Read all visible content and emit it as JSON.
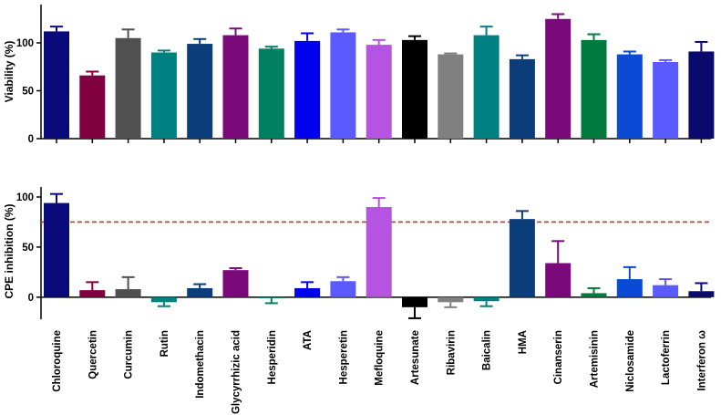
{
  "chart_data": {
    "categories": [
      "Chloroquine",
      "Quercetin",
      "Curcumin",
      "Rutin",
      "Indomethacin",
      "Glycyrrhizic acid",
      "Hesperidin",
      "ATA",
      "Hesperetin",
      "Mefloquine",
      "Artesunate",
      "Ribavirin",
      "Baicalin",
      "HMA",
      "Cinanserin",
      "Artemisinin",
      "Niclosamide",
      "Lactoferrin",
      "Interferon ω"
    ],
    "colors": [
      "#0a0a7a",
      "#800040",
      "#505050",
      "#008080",
      "#0a3d7a",
      "#7a0a7a",
      "#008060",
      "#0000ee",
      "#5a5aff",
      "#b454e0",
      "#000000",
      "#808080",
      "#008080",
      "#0a3d7a",
      "#7a0a7a",
      "#007a3d",
      "#0a4ad4",
      "#5a5aff",
      "#0a0a6e"
    ],
    "panels": [
      {
        "type": "bar",
        "ylabel": "Viability (%)",
        "ylim": [
          0,
          140
        ],
        "yticks": [
          0,
          50,
          100
        ],
        "values": [
          112,
          66,
          105,
          90,
          99,
          108,
          94,
          102,
          111,
          98,
          103,
          88,
          108,
          83,
          125,
          103,
          88,
          80,
          91
        ],
        "errors": [
          5,
          4,
          9,
          2,
          5,
          7,
          2,
          8,
          3,
          5,
          4,
          1,
          9,
          4,
          5,
          6,
          3,
          2,
          10
        ]
      },
      {
        "type": "bar",
        "ylabel": "CPE inhibition (%)",
        "ylim": [
          -22,
          110
        ],
        "yticks": [
          0,
          50,
          100
        ],
        "values": [
          94,
          7,
          8,
          -5,
          9,
          27,
          -1,
          9,
          16,
          90,
          -10,
          -5,
          -4,
          78,
          34,
          4,
          18,
          12,
          6
        ],
        "errors": [
          9,
          8,
          12,
          4,
          4,
          2,
          5,
          6,
          4,
          9,
          11,
          5,
          5,
          8,
          22,
          5,
          12,
          6,
          8
        ],
        "threshold": 75,
        "threshold_color": "#c0392b"
      }
    ]
  }
}
